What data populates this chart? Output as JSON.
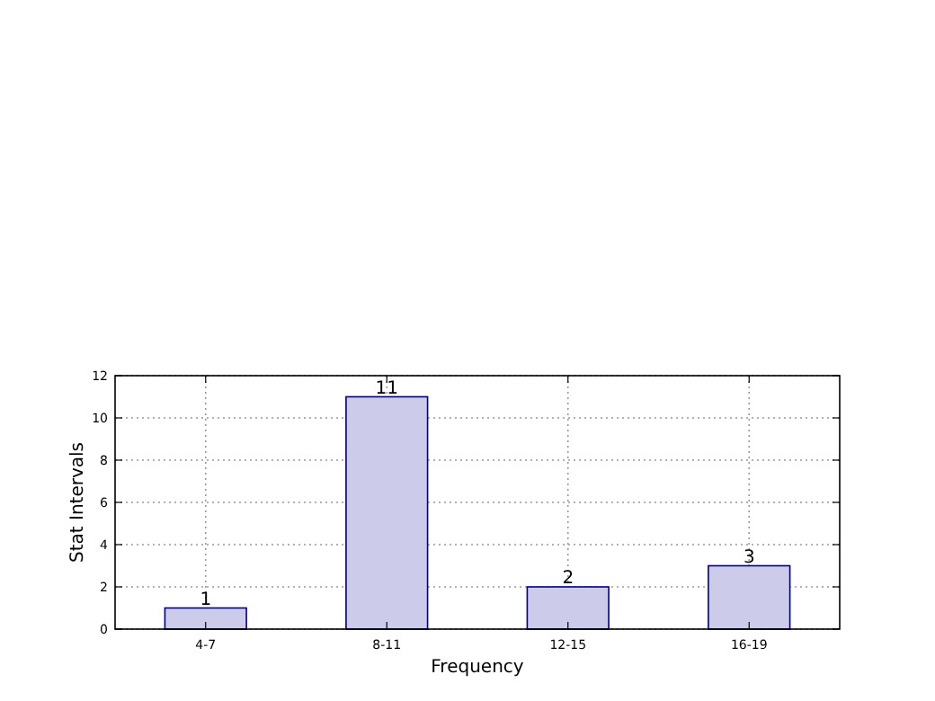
{
  "chart_data": {
    "type": "bar",
    "xlabel": "Frequency",
    "ylabel": "Stat Intervals",
    "categories": [
      "4-7",
      "8-11",
      "12-15",
      "16-19"
    ],
    "values": [
      1,
      11,
      2,
      3
    ],
    "color": "#ccccea",
    "ylim": [
      0,
      12
    ],
    "yticks": [
      0,
      2,
      4,
      6,
      8,
      10,
      12
    ],
    "grid": true,
    "data_labels": true
  }
}
